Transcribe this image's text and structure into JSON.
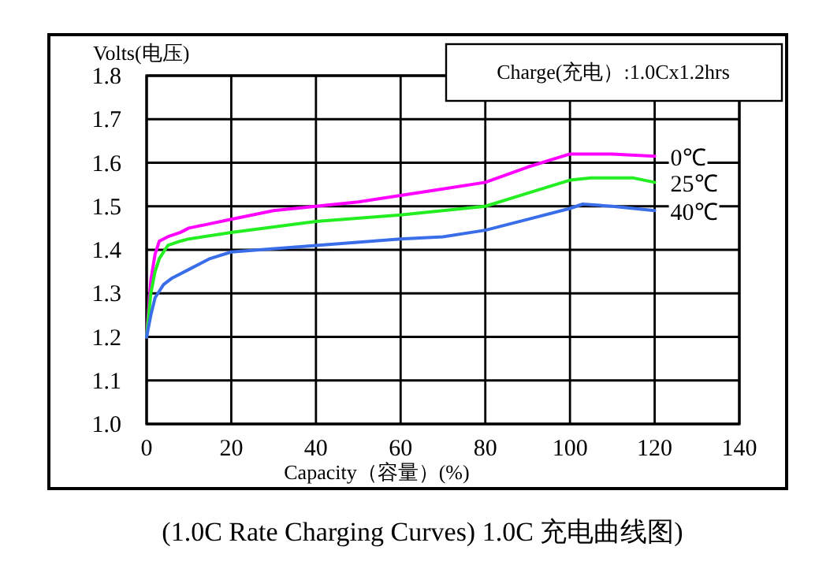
{
  "chart_data": {
    "type": "line",
    "title": "(1.0C Rate Charging Curves) 1.0C 充电曲线图)",
    "xlabel": "Capacity（容量）(%)",
    "ylabel": "Volts(电压)",
    "annotations": [
      "Charge(充电）:1.0Cx1.2hrs"
    ],
    "xlim": [
      0,
      140
    ],
    "xticks": [
      0,
      20,
      40,
      60,
      80,
      100,
      120,
      140
    ],
    "ylim": [
      1.0,
      1.8
    ],
    "yticks": [
      {
        "value": 1.0,
        "label": "1.0"
      },
      1.1,
      1.2,
      1.3,
      1.4,
      1.5,
      1.6,
      1.7,
      1.8
    ],
    "grid": true,
    "line_style": "solid",
    "series": [
      {
        "name": "0℃",
        "color": "#ff00ff",
        "x": [
          0,
          1,
          2,
          3,
          5,
          8,
          10,
          15,
          20,
          30,
          40,
          50,
          60,
          70,
          80,
          90,
          100,
          110,
          120
        ],
        "values": [
          1.2,
          1.33,
          1.39,
          1.42,
          1.43,
          1.44,
          1.45,
          1.46,
          1.47,
          1.49,
          1.5,
          1.51,
          1.525,
          1.54,
          1.555,
          1.59,
          1.62,
          1.62,
          1.615
        ]
      },
      {
        "name": "25℃",
        "color": "#22ee22",
        "x": [
          0,
          1,
          2,
          3,
          5,
          8,
          10,
          20,
          40,
          60,
          80,
          90,
          100,
          105,
          115,
          120
        ],
        "values": [
          1.2,
          1.3,
          1.35,
          1.38,
          1.41,
          1.42,
          1.425,
          1.44,
          1.465,
          1.48,
          1.5,
          1.53,
          1.56,
          1.565,
          1.565,
          1.555
        ]
      },
      {
        "name": "40℃",
        "color": "#3a6ee8",
        "x": [
          0,
          1,
          2,
          4,
          6,
          10,
          15,
          20,
          40,
          60,
          70,
          80,
          90,
          100,
          103,
          110,
          120
        ],
        "values": [
          1.2,
          1.25,
          1.29,
          1.32,
          1.335,
          1.355,
          1.38,
          1.395,
          1.41,
          1.425,
          1.43,
          1.445,
          1.47,
          1.495,
          1.505,
          1.5,
          1.49
        ]
      }
    ]
  }
}
